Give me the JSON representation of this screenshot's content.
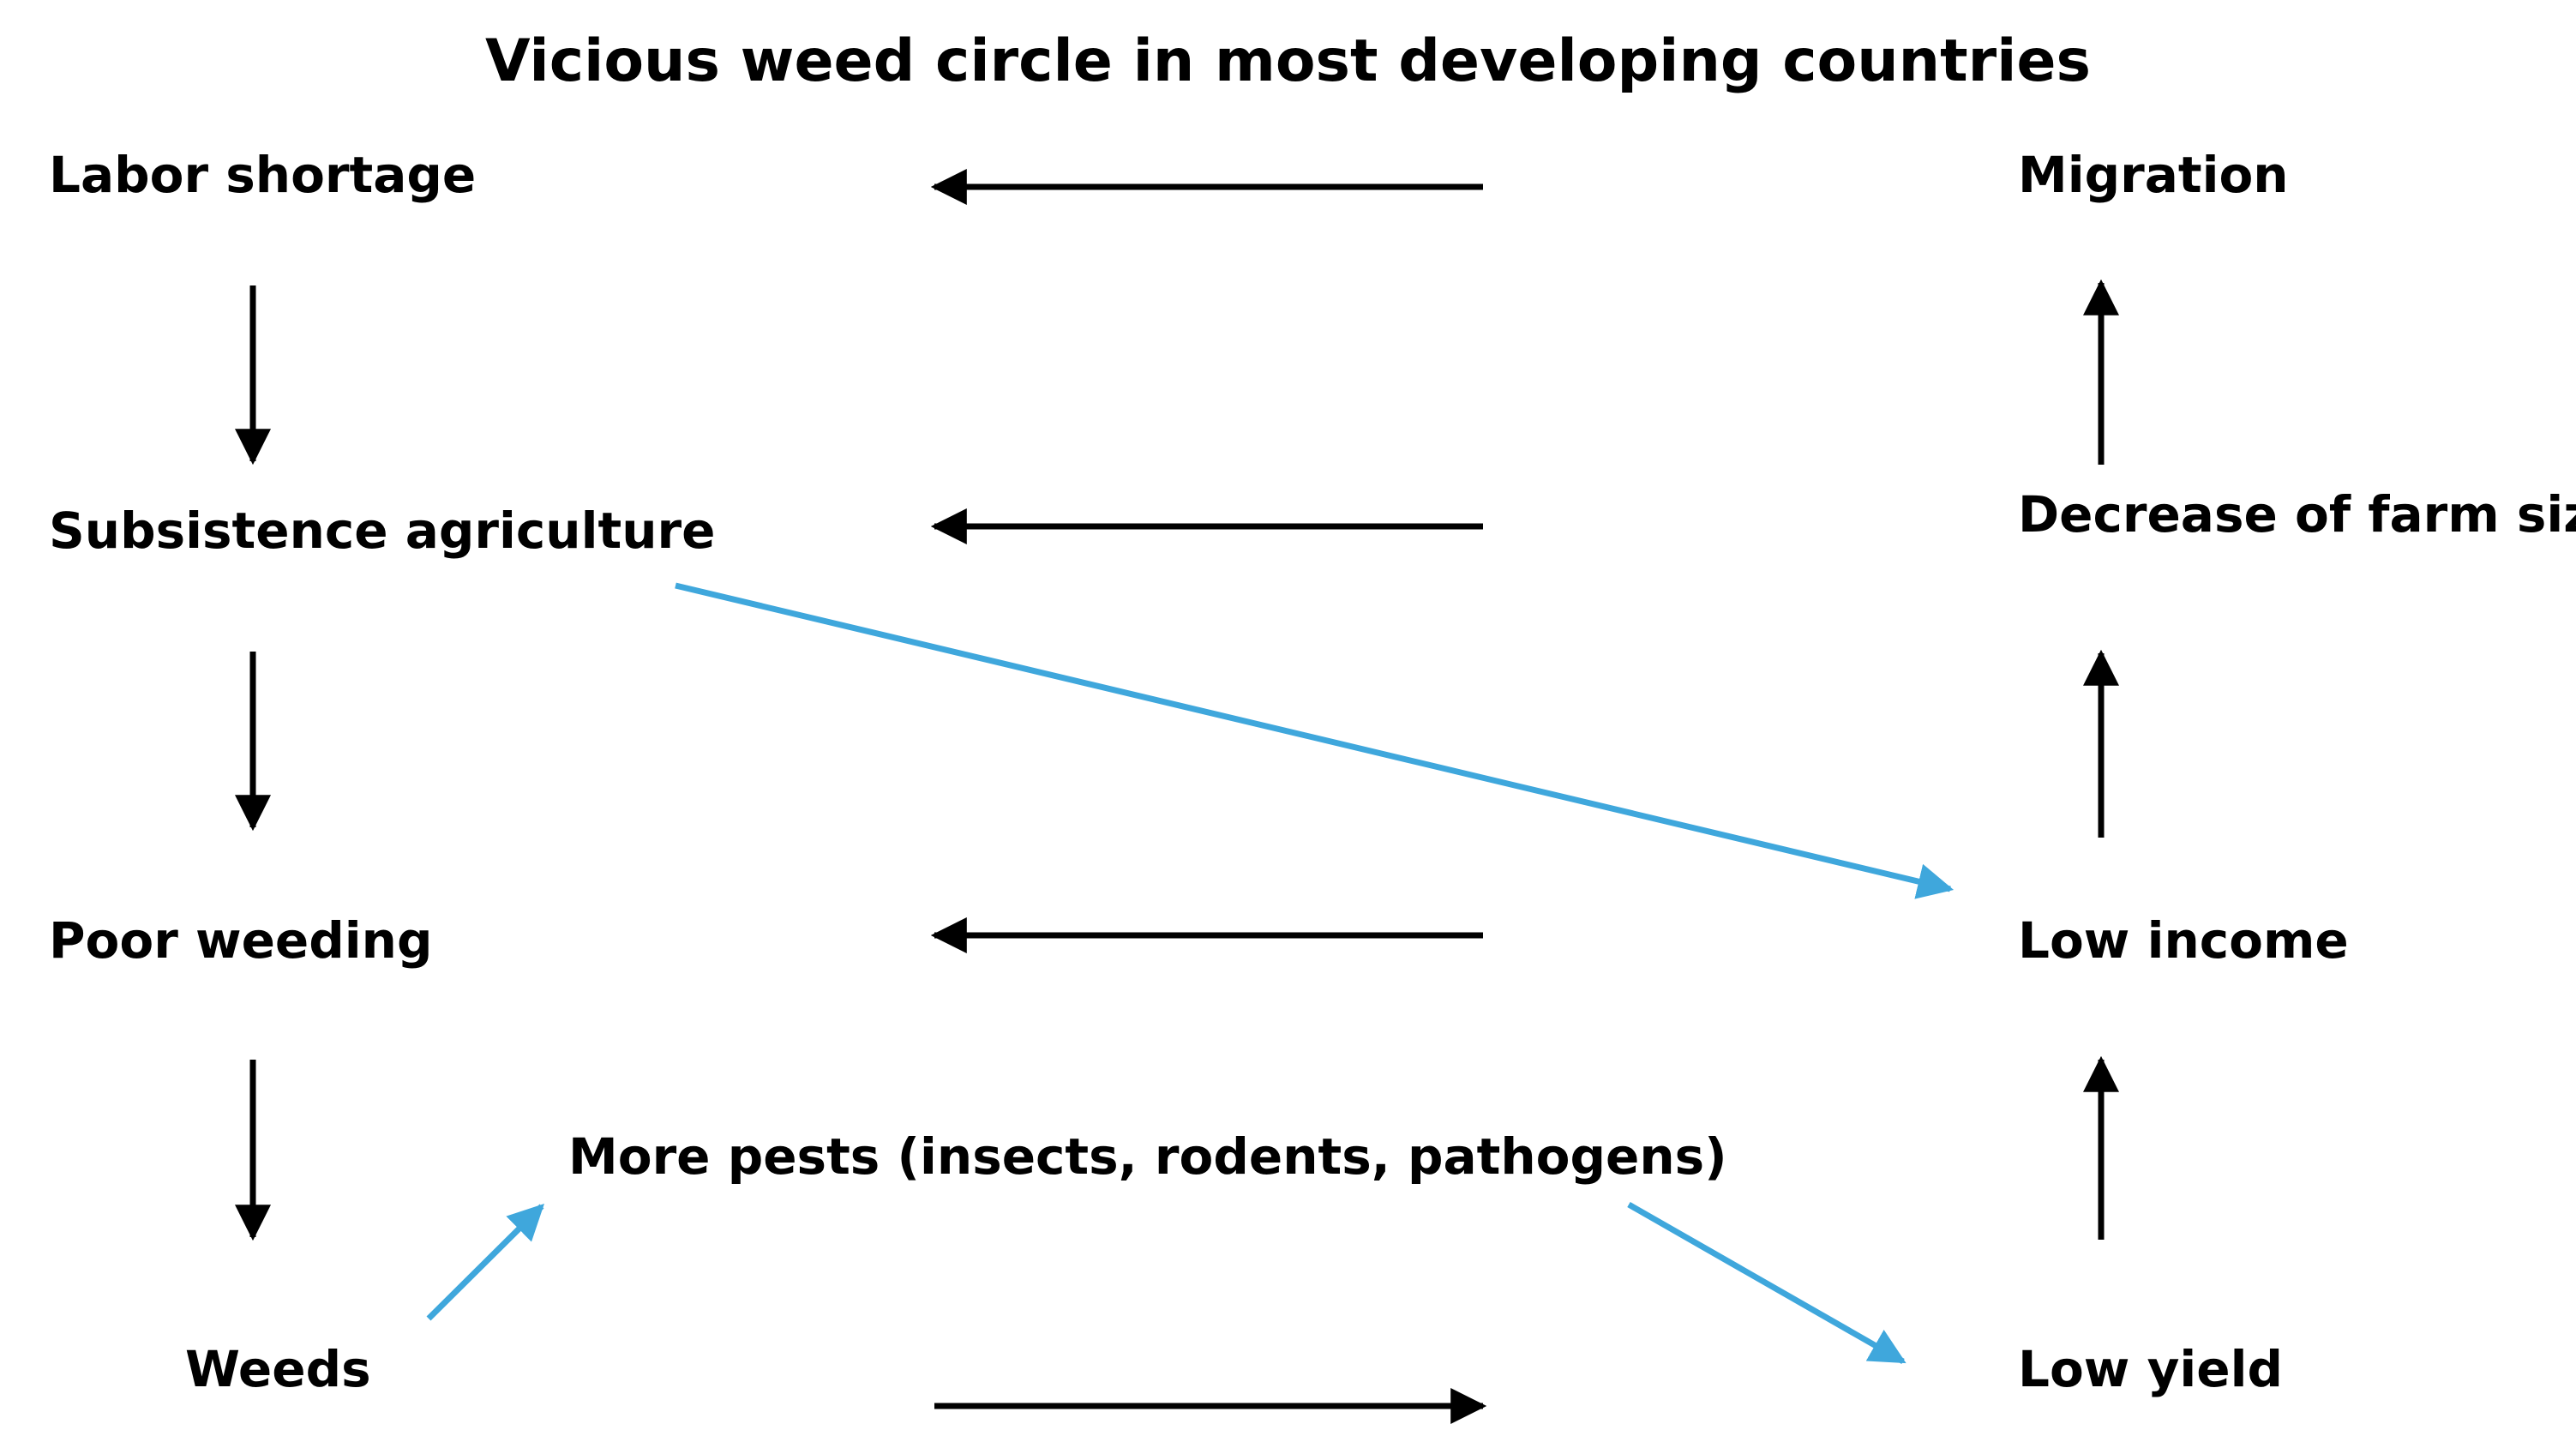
{
  "title": "Vicious weed circle in most developing countries",
  "nodes": {
    "labor_shortage": "Labor shortage",
    "subsistence_agriculture": "Subsistence agriculture",
    "poor_weeding": "Poor weeding",
    "weeds": "Weeds",
    "more_pests": "More pests (insects, rodents, pathogens)",
    "migration": "Migration",
    "decrease_farm_size": "Decrease of farm size",
    "low_income": "Low income",
    "low_yield": "Low yield"
  },
  "colors": {
    "primary_arrow": "#000000",
    "secondary_arrow": "#3fa7dc",
    "text": "#000000",
    "background": "#ffffff"
  }
}
